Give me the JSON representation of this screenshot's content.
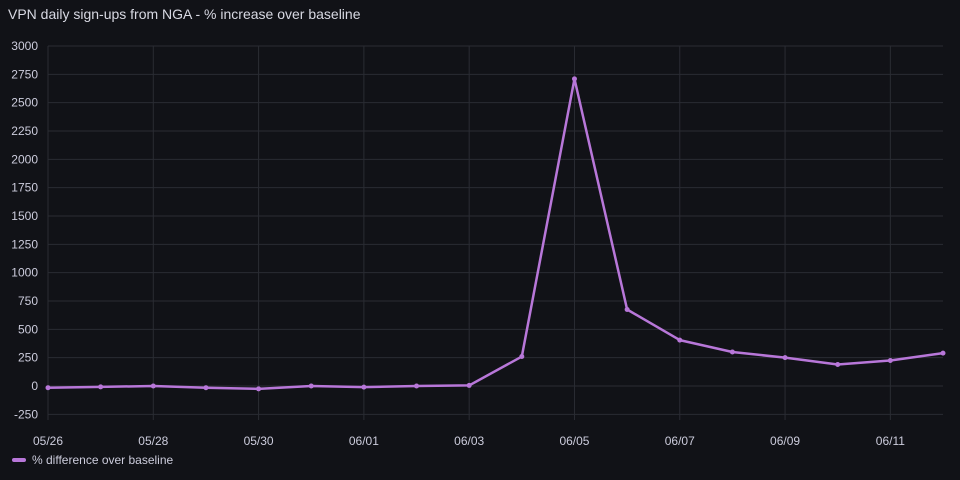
{
  "panel": {
    "title": "VPN daily sign-ups from NGA - % increase over baseline"
  },
  "colors": {
    "background": "#111217",
    "series": "#b877d9",
    "grid": "#2a2c33",
    "text": "#ccccdc"
  },
  "chart_data": {
    "type": "line",
    "title": "VPN daily sign-ups from NGA - % increase over baseline",
    "xlabel": "",
    "ylabel": "",
    "x": [
      "05/26",
      "05/27",
      "05/28",
      "05/29",
      "05/30",
      "05/31",
      "06/01",
      "06/02",
      "06/03",
      "06/04",
      "06/05",
      "06/06",
      "06/07",
      "06/08",
      "06/09",
      "06/10",
      "06/11",
      "06/12"
    ],
    "x_tick_labels": [
      "05/26",
      "05/28",
      "05/30",
      "06/01",
      "06/03",
      "06/05",
      "06/07",
      "06/09",
      "06/11"
    ],
    "y_ticks": [
      -250,
      0,
      250,
      500,
      750,
      1000,
      1250,
      1500,
      1750,
      2000,
      2250,
      2500,
      2750,
      3000
    ],
    "ylim": [
      -300,
      3000
    ],
    "grid": true,
    "legend_position": "bottom-left",
    "series": [
      {
        "name": "% difference over baseline",
        "color": "#b877d9",
        "values": [
          -15,
          -8,
          0,
          -15,
          -25,
          0,
          -10,
          0,
          5,
          260,
          2710,
          675,
          405,
          300,
          250,
          190,
          225,
          290
        ]
      }
    ]
  }
}
